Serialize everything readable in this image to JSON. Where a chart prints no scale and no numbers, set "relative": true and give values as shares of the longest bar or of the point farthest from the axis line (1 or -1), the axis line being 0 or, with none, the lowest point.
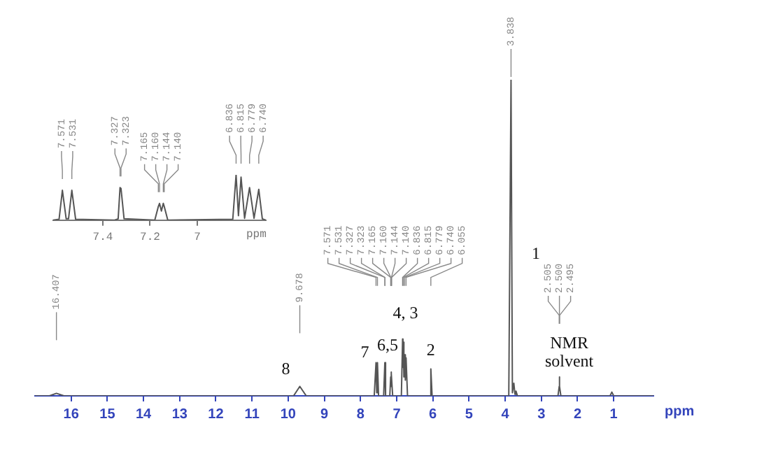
{
  "chart_data": [
    {
      "type": "line",
      "xlabel": "ppm",
      "relative": true,
      "xlim": [
        17,
        -0.1
      ],
      "xticks": [
        16,
        15,
        14,
        13,
        12,
        11,
        10,
        9,
        8,
        7,
        6,
        5,
        4,
        3,
        2,
        1
      ],
      "series": [
        {
          "color": "#555555",
          "x": [
            17,
            16.6,
            16.407,
            16.2,
            9.85,
            9.678,
            9.5,
            7.62,
            7.571,
            7.551,
            7.531,
            7.5,
            7.36,
            7.327,
            7.323,
            7.29,
            7.19,
            7.165,
            7.16,
            7.152,
            7.144,
            7.14,
            7.11,
            6.87,
            6.836,
            6.826,
            6.815,
            6.8,
            6.779,
            6.76,
            6.74,
            6.7,
            6.09,
            6.055,
            6.02,
            3.9,
            3.838,
            3.8,
            3.76,
            3.73,
            3.7,
            3.66,
            2.54,
            2.505,
            2.5,
            2.495,
            2.46,
            1.1,
            1.05,
            1.0,
            -0.1
          ],
          "values": [
            0,
            0,
            0.008,
            0,
            0,
            0.03,
            0,
            0,
            0.105,
            0.01,
            0.105,
            0,
            0,
            0.105,
            0.1,
            0,
            0,
            0.06,
            0.07,
            0.03,
            0.075,
            0.07,
            0,
            0,
            0.18,
            0.09,
            0.17,
            0.06,
            0.13,
            0.05,
            0.12,
            0,
            0,
            0.085,
            0,
            0,
            1,
            0.01,
            0.04,
            0.005,
            0.015,
            0,
            0,
            0.03,
            0.06,
            0.03,
            0,
            0,
            0.012,
            0,
            0
          ]
        }
      ],
      "annotations": [
        {
          "text": "8",
          "x": 9.678,
          "y": 0.03
        },
        {
          "text": "7",
          "x": 7.571,
          "y": 0.105
        },
        {
          "text": "6,5",
          "x": 7.327,
          "y": 0.105
        },
        {
          "text": "4, 3",
          "x": 6.836,
          "y": 0.18
        },
        {
          "text": "2",
          "x": 6.055,
          "y": 0.085
        },
        "1",
        {
          "text": "NMR\nsolvent",
          "x": 2.5,
          "y": 0.06
        },
        {
          "text": "16.407",
          "x": 16.407
        },
        {
          "text": "9.678",
          "x": 9.678
        },
        {
          "text": "7.571",
          "x": 7.571
        },
        {
          "text": "7.531",
          "x": 7.531
        },
        {
          "text": "7.327",
          "x": 7.327
        },
        {
          "text": "7.323",
          "x": 7.323
        },
        {
          "text": "7.165",
          "x": 7.165
        },
        {
          "text": "7.160",
          "x": 7.16
        },
        {
          "text": "7.144",
          "x": 7.144
        },
        {
          "text": "7.140",
          "x": 7.14
        },
        {
          "text": "6.836",
          "x": 6.836
        },
        {
          "text": "6.815",
          "x": 6.815
        },
        {
          "text": "6.779",
          "x": 6.779
        },
        {
          "text": "6.740",
          "x": 6.74
        },
        {
          "text": "6.055",
          "x": 6.055
        },
        {
          "text": "3.838",
          "x": 3.838
        },
        {
          "text": "2.505",
          "x": 2.505
        },
        {
          "text": "2.500",
          "x": 2.5
        },
        {
          "text": "2.495",
          "x": 2.495
        }
      ]
    },
    {
      "type": "line",
      "xlabel": "ppm",
      "relative": true,
      "xlim": [
        7.61,
        6.71
      ],
      "xticks": [
        7.4,
        7.2,
        7.0
      ],
      "series": [
        {
          "color": "#555555",
          "x": [
            7.61,
            7.585,
            7.571,
            7.555,
            7.545,
            7.531,
            7.515,
            7.35,
            7.335,
            7.327,
            7.323,
            7.31,
            7.18,
            7.165,
            7.16,
            7.152,
            7.144,
            7.14,
            7.125,
            6.85,
            6.836,
            6.826,
            6.815,
            6.8,
            6.779,
            6.76,
            6.74,
            6.725,
            6.71
          ],
          "values": [
            0,
            0.02,
            0.66,
            0.03,
            0.03,
            0.66,
            0.02,
            0,
            0.03,
            0.72,
            0.7,
            0.03,
            0,
            0.3,
            0.37,
            0.2,
            0.37,
            0.3,
            0,
            0.02,
            1,
            0.1,
            0.95,
            0.04,
            0.72,
            0.04,
            0.68,
            0.03,
            0
          ]
        }
      ],
      "annotations": [
        {
          "text": "7.571",
          "x": 7.571
        },
        {
          "text": "7.531",
          "x": 7.531
        },
        {
          "text": "7.327",
          "x": 7.327
        },
        {
          "text": "7.323",
          "x": 7.323
        },
        {
          "text": "7.165",
          "x": 7.165
        },
        {
          "text": "7.160",
          "x": 7.16
        },
        {
          "text": "7.144",
          "x": 7.144
        },
        {
          "text": "7.140",
          "x": 7.14
        },
        {
          "text": "6.836",
          "x": 6.836
        },
        {
          "text": "6.815",
          "x": 6.815
        },
        {
          "text": "6.779",
          "x": 6.779
        },
        {
          "text": "6.740",
          "x": 6.74
        }
      ]
    }
  ]
}
